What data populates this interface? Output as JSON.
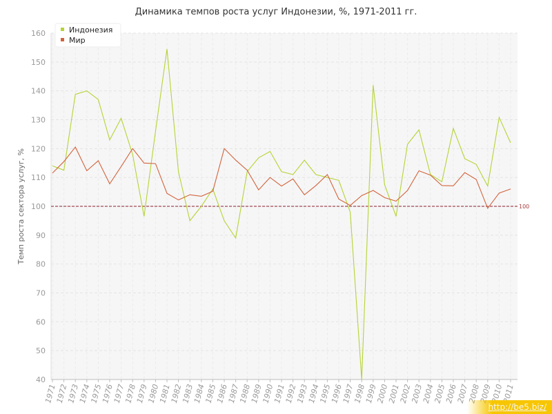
{
  "chart_data": {
    "type": "line",
    "title": "Динамика темпов роста услуг Индонезии, %, 1971-2011 гг.",
    "xlabel": "",
    "ylabel": "Темп роста сектора услуг, %",
    "ylim": [
      40,
      160
    ],
    "yticks": [
      40,
      50,
      60,
      70,
      80,
      90,
      100,
      110,
      120,
      130,
      140,
      150,
      160
    ],
    "x": [
      "1971",
      "1972",
      "1973",
      "1974",
      "1975",
      "1976",
      "1977",
      "1978",
      "1979",
      "1980",
      "1981",
      "1982",
      "1983",
      "1984",
      "1985",
      "1986",
      "1987",
      "1988",
      "1989",
      "1990",
      "1991",
      "1992",
      "1993",
      "1994",
      "1995",
      "1996",
      "1997",
      "1998",
      "1999",
      "2000",
      "2001",
      "2002",
      "2003",
      "2004",
      "2005",
      "2006",
      "2007",
      "2008",
      "2009",
      "2010",
      "2011"
    ],
    "series": [
      {
        "name": "Индонезия",
        "color": "#b5d334",
        "values": [
          114,
          112.5,
          138.8,
          140,
          137,
          123,
          130.5,
          118,
          96.5,
          126,
          154.5,
          112,
          95,
          100,
          106,
          95,
          89,
          112,
          116.8,
          119,
          112,
          111,
          116,
          111,
          110,
          109,
          98,
          40,
          142,
          107.5,
          96.5,
          121.5,
          126.5,
          111,
          108.5,
          127,
          116.5,
          114.5,
          107,
          130.8,
          122
        ]
      },
      {
        "name": "Мир",
        "color": "#d2633c",
        "values": [
          111.5,
          115.5,
          120.5,
          112.3,
          115.8,
          107.8,
          113.8,
          120,
          115,
          114.8,
          104.5,
          102.2,
          104,
          103.5,
          105.2,
          120,
          116,
          112.5,
          105.7,
          110,
          107,
          109.5,
          104,
          107.2,
          111,
          102.5,
          100.3,
          103.7,
          105.5,
          103,
          101.8,
          105.5,
          112.3,
          110.8,
          107.2,
          107.1,
          111.7,
          109.3,
          99.3,
          104.6,
          106
        ]
      }
    ],
    "reference_line": {
      "value": 100,
      "label": "100",
      "color": "#8b1a2b"
    },
    "grid": true,
    "legend_placement": "top-left"
  },
  "watermark": "http://be5.biz/"
}
